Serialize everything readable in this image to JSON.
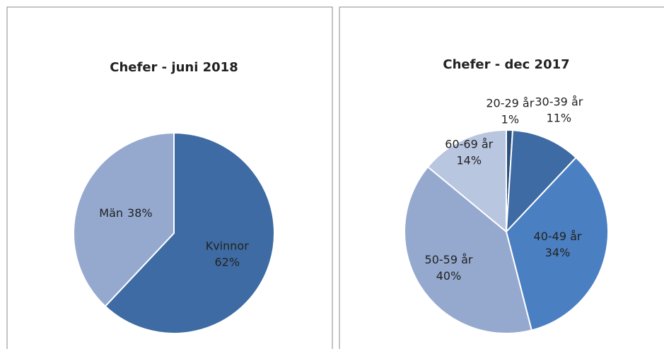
{
  "chart_data": [
    {
      "type": "pie",
      "title": "Chefer - juni 2018",
      "categories": [
        "Kvinnor",
        "Män"
      ],
      "values": [
        62,
        38
      ],
      "value_labels": [
        "62%",
        "38%"
      ],
      "colors": [
        "#3e6ba3",
        "#95a9cf"
      ]
    },
    {
      "type": "pie",
      "title": "Chefer - dec 2017",
      "categories": [
        "20-29 år",
        "30-39 år",
        "40-49 år",
        "50-59 år",
        "60-69 år"
      ],
      "values": [
        1,
        11,
        34,
        40,
        14
      ],
      "value_labels": [
        "1%",
        "11%",
        "34%",
        "40%",
        "14%"
      ],
      "colors": [
        "#2c4f7c",
        "#3e6ba3",
        "#4a7fc1",
        "#95a9cf",
        "#b9c6e0"
      ]
    }
  ]
}
